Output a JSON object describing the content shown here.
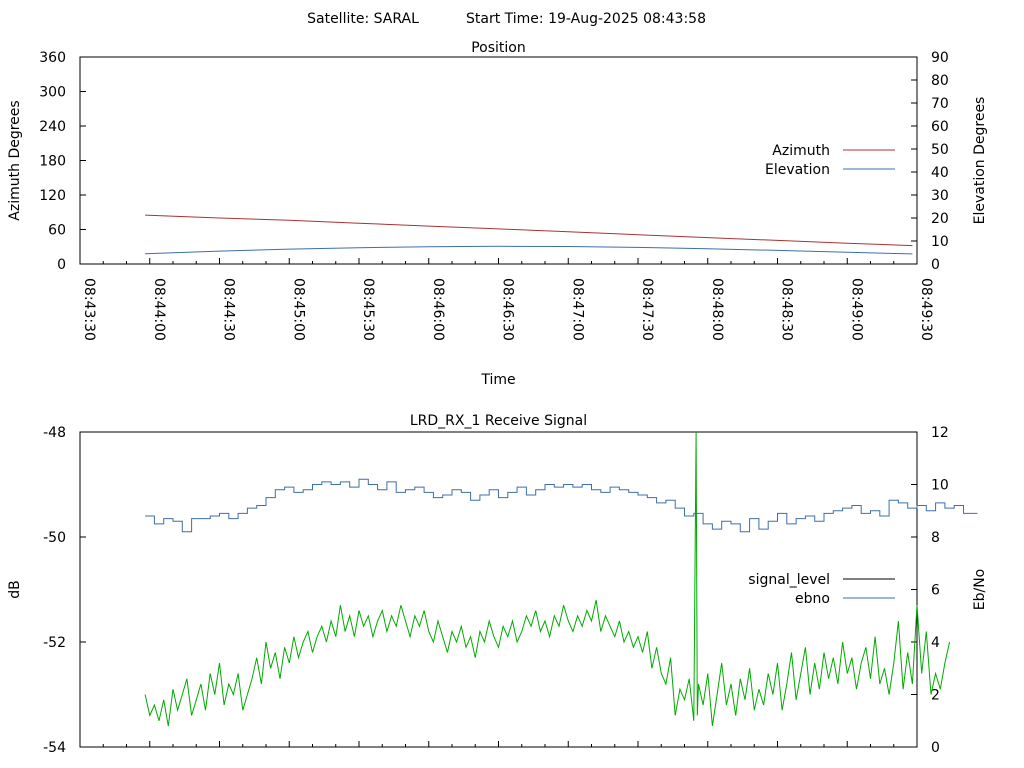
{
  "header": {
    "satellite": "Satellite: SARAL",
    "start_time": "Start Time: 19-Aug-2025 08:43:58"
  },
  "colors": {
    "azimuth": "#a83232",
    "elevation": "#3e6fa8",
    "ebno": "#3e6fa8",
    "signal_level": "#00aa00",
    "signal_legend": "#000000",
    "axis": "#000000"
  },
  "chart_data": [
    {
      "type": "line",
      "title": "Position",
      "xlabel": "Time",
      "ylabel": "Azimuth Degrees",
      "y2label": "Elevation Degrees",
      "xlim": [
        "08:43:30",
        "08:49:30"
      ],
      "xticks": [
        "08:43:30",
        "08:44:00",
        "08:44:30",
        "08:45:00",
        "08:45:30",
        "08:46:00",
        "08:46:30",
        "08:47:00",
        "08:47:30",
        "08:48:00",
        "08:48:30",
        "08:49:00",
        "08:49:30"
      ],
      "ylim": [
        0,
        360
      ],
      "yticks": [
        0,
        60,
        120,
        180,
        240,
        300,
        360
      ],
      "y2lim": [
        0,
        90
      ],
      "y2ticks": [
        0,
        10,
        20,
        30,
        40,
        50,
        60,
        70,
        80,
        90
      ],
      "legend": "right",
      "series": [
        {
          "name": "Azimuth",
          "axis": "y",
          "x": [
            "08:43:58",
            "08:44:30",
            "08:45:00",
            "08:45:30",
            "08:46:00",
            "08:46:30",
            "08:47:00",
            "08:47:30",
            "08:48:00",
            "08:48:30",
            "08:49:00",
            "08:49:28"
          ],
          "values": [
            85,
            80,
            76,
            71,
            66,
            61,
            56,
            51,
            46,
            41,
            36,
            32
          ]
        },
        {
          "name": "Elevation",
          "axis": "y2",
          "x": [
            "08:43:58",
            "08:44:30",
            "08:45:00",
            "08:45:30",
            "08:46:00",
            "08:46:30",
            "08:47:00",
            "08:47:30",
            "08:48:00",
            "08:48:30",
            "08:49:00",
            "08:49:28"
          ],
          "values": [
            4.5,
            5.6,
            6.5,
            7.1,
            7.5,
            7.7,
            7.6,
            7.2,
            6.6,
            5.9,
            5.1,
            4.4
          ]
        }
      ]
    },
    {
      "type": "line",
      "title": "LRD_RX_1 Receive Signal",
      "xlabel": "",
      "ylabel": "dB",
      "y2label": "Eb/No",
      "ylim": [
        -54,
        -48
      ],
      "yticks": [
        -54,
        -52,
        -50,
        -48
      ],
      "y2lim": [
        0,
        12
      ],
      "y2ticks": [
        0,
        2,
        4,
        6,
        8,
        10,
        12
      ],
      "legend": "right",
      "series": [
        {
          "name": "signal_level",
          "axis": "y",
          "x_seconds_from_start": [
            0,
            2,
            4,
            6,
            8,
            10,
            12,
            14,
            16,
            18,
            20,
            22,
            24,
            26,
            28,
            30,
            32,
            34,
            36,
            38,
            40,
            42,
            44,
            46,
            48,
            50,
            52,
            54,
            56,
            58,
            60,
            62,
            64,
            66,
            68,
            70,
            72,
            74,
            76,
            78,
            80,
            82,
            84,
            86,
            88,
            90,
            92,
            94,
            96,
            98,
            100,
            102,
            104,
            106,
            108,
            110,
            112,
            114,
            116,
            118,
            120,
            122,
            124,
            126,
            128,
            130,
            132,
            134,
            136,
            138,
            140,
            142,
            144,
            146,
            148,
            150,
            152,
            154,
            156,
            158,
            160,
            162,
            164,
            166,
            168,
            170,
            172,
            174,
            176,
            178,
            180,
            182,
            184,
            186,
            188,
            190,
            192,
            194,
            196,
            198,
            200,
            202,
            204,
            206,
            208,
            210,
            212,
            214,
            216,
            218,
            220,
            222,
            224,
            226,
            228,
            230,
            232,
            234,
            236,
            238,
            240,
            242,
            244,
            246,
            248,
            250,
            252,
            254,
            256,
            258,
            260,
            262,
            264,
            266,
            268,
            270,
            272,
            274,
            276,
            278,
            280,
            282,
            284,
            286,
            288,
            290,
            292,
            294,
            296,
            298,
            300,
            302,
            304,
            306,
            308,
            310,
            312,
            314,
            316,
            318,
            320,
            322,
            324,
            326,
            328,
            330,
            332,
            334,
            336,
            338,
            340,
            342,
            344,
            346,
            348,
            350,
            352,
            354,
            356,
            358
          ],
          "values": [
            -53.0,
            -53.4,
            -53.2,
            -53.5,
            -53.1,
            -53.6,
            -52.9,
            -53.3,
            -53.0,
            -52.7,
            -53.4,
            -53.1,
            -52.8,
            -53.3,
            -52.6,
            -53.0,
            -52.4,
            -53.2,
            -52.8,
            -53.0,
            -52.6,
            -53.3,
            -53.0,
            -52.7,
            -52.3,
            -52.8,
            -52.0,
            -52.5,
            -52.2,
            -52.7,
            -52.1,
            -52.4,
            -51.9,
            -52.3,
            -52.0,
            -51.8,
            -52.2,
            -51.9,
            -51.7,
            -52.0,
            -51.6,
            -51.9,
            -51.3,
            -51.8,
            -51.5,
            -51.9,
            -51.4,
            -51.7,
            -51.5,
            -51.9,
            -51.6,
            -51.4,
            -51.8,
            -51.5,
            -51.7,
            -51.3,
            -51.6,
            -51.9,
            -51.5,
            -51.7,
            -51.4,
            -51.8,
            -52.0,
            -51.6,
            -51.9,
            -52.2,
            -51.8,
            -52.0,
            -51.7,
            -52.1,
            -51.9,
            -52.3,
            -51.8,
            -52.0,
            -51.6,
            -51.9,
            -52.1,
            -51.7,
            -51.9,
            -51.6,
            -52.0,
            -51.8,
            -51.5,
            -51.7,
            -51.4,
            -51.8,
            -51.6,
            -51.9,
            -51.5,
            -51.7,
            -51.3,
            -51.6,
            -51.8,
            -51.5,
            -51.7,
            -51.4,
            -51.6,
            -51.2,
            -51.8,
            -51.5,
            -51.7,
            -51.9,
            -51.6,
            -52.0,
            -51.8,
            -52.1,
            -51.9,
            -52.2,
            -51.8,
            -52.5,
            -52.1,
            -52.6,
            -52.8,
            -52.3,
            -53.4,
            -52.9,
            -53.1,
            -52.7,
            -53.5,
            -52.8,
            -53.2,
            -52.6,
            -53.6,
            -53.0,
            -52.4,
            -53.2,
            -52.8,
            -53.4,
            -52.7,
            -53.1,
            -52.5,
            -53.3,
            -52.9,
            -53.2,
            -52.6,
            -53.0,
            -52.4,
            -53.3,
            -52.8,
            -52.2,
            -53.1,
            -52.6,
            -52.1,
            -53.0,
            -52.4,
            -52.9,
            -52.2,
            -52.7,
            -52.3,
            -52.8,
            -52.0,
            -52.6,
            -52.3,
            -52.9,
            -52.4,
            -52.1,
            -52.7,
            -51.9,
            -52.8,
            -52.5,
            -53.0,
            -52.4,
            -51.6,
            -52.9,
            -52.2,
            -52.8,
            -51.3,
            -52.6,
            -51.8,
            -53.0,
            -52.6,
            -52.9,
            -52.4,
            -52.0
          ],
          "spike": {
            "x_seconds_from_start": 237,
            "value": -48.0
          }
        },
        {
          "name": "ebno",
          "axis": "y2",
          "x_seconds_from_start": [
            0,
            4,
            8,
            12,
            16,
            20,
            24,
            28,
            32,
            36,
            40,
            44,
            48,
            52,
            56,
            60,
            64,
            68,
            72,
            76,
            80,
            84,
            88,
            92,
            96,
            100,
            104,
            108,
            112,
            116,
            120,
            124,
            128,
            132,
            136,
            140,
            144,
            148,
            152,
            156,
            160,
            164,
            168,
            172,
            176,
            180,
            184,
            188,
            192,
            196,
            200,
            204,
            208,
            212,
            216,
            220,
            224,
            228,
            232,
            236,
            240,
            244,
            248,
            252,
            256,
            260,
            264,
            268,
            272,
            276,
            280,
            284,
            288,
            292,
            296,
            300,
            304,
            308,
            312,
            316,
            320,
            324,
            328,
            332,
            336,
            340,
            344,
            348,
            352,
            356,
            358
          ],
          "values": [
            8.8,
            8.5,
            8.7,
            8.6,
            8.2,
            8.7,
            8.7,
            8.8,
            8.9,
            8.7,
            8.9,
            9.1,
            9.2,
            9.5,
            9.8,
            9.9,
            9.7,
            9.8,
            10.0,
            10.1,
            10.0,
            10.1,
            9.9,
            10.2,
            10.0,
            9.8,
            10.1,
            9.7,
            9.8,
            9.9,
            9.7,
            9.5,
            9.6,
            9.8,
            9.7,
            9.4,
            9.6,
            9.8,
            9.5,
            9.7,
            9.9,
            9.6,
            9.8,
            10.0,
            9.9,
            10.0,
            9.9,
            10.0,
            9.8,
            9.7,
            9.9,
            9.8,
            9.7,
            9.6,
            9.5,
            9.3,
            9.4,
            9.1,
            8.8,
            8.9,
            8.5,
            8.3,
            8.6,
            8.5,
            8.2,
            8.7,
            8.3,
            8.6,
            8.9,
            8.5,
            8.7,
            8.8,
            8.6,
            8.9,
            9.0,
            9.1,
            9.2,
            8.9,
            9.0,
            8.8,
            9.4,
            9.3,
            9.1,
            9.2,
            9.0,
            9.3,
            9.1,
            9.2,
            8.9,
            8.9,
            8.9
          ]
        }
      ]
    }
  ]
}
